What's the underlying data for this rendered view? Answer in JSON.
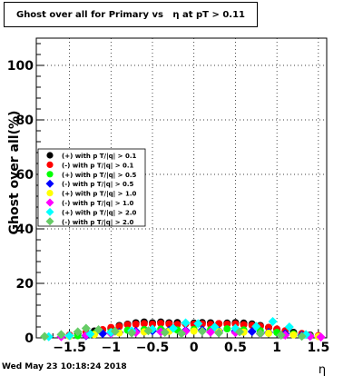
{
  "title": "Ghost over all for Primary vs   η at pT > 0.11",
  "footer": "Wed May 23 10:18:24 2018",
  "chart_data": {
    "type": "scatter",
    "title": "Ghost over all for Primary vs   η at pT > 0.11",
    "xlabel": "η",
    "ylabel": "Ghost over all(%)",
    "xlim": [
      -1.9,
      1.6
    ],
    "ylim": [
      0,
      110
    ],
    "x_ticks": [
      -1.5,
      -1,
      -0.5,
      0,
      0.5,
      1,
      1.5
    ],
    "x_tick_labels": [
      "−1.5",
      "−1",
      "−0.5",
      "0",
      "0.5",
      "1",
      "1.5"
    ],
    "y_ticks": [
      0,
      20,
      40,
      60,
      80,
      100
    ],
    "y_tick_labels": [
      "0",
      "20",
      "40",
      "60",
      "80",
      "100"
    ],
    "grid": true,
    "legend_position": "left",
    "series": [
      {
        "name": "(+) with p T/|q| > 0.1",
        "color": "#000000",
        "marker": "circle",
        "x": [
          -1.4,
          -1.2,
          -1.0,
          -0.9,
          -0.8,
          -0.7,
          -0.6,
          -0.5,
          -0.4,
          -0.3,
          -0.2,
          -0.1,
          0.0,
          0.1,
          0.2,
          0.3,
          0.4,
          0.5,
          0.6,
          0.7,
          0.8,
          0.9,
          1.0,
          1.2,
          1.4
        ],
        "y": [
          1.5,
          2.5,
          3.5,
          4.5,
          5.0,
          5.5,
          5.8,
          5.5,
          5.8,
          5.5,
          5.6,
          5.2,
          5.4,
          5.6,
          5.5,
          5.2,
          5.4,
          5.6,
          5.4,
          5.1,
          4.5,
          3.8,
          3.0,
          2.0,
          1.0
        ]
      },
      {
        "name": "(-) with p T/|q| > 0.1",
        "color": "#ff0000",
        "marker": "circle",
        "x": [
          -1.5,
          -1.3,
          -1.1,
          -1.0,
          -0.9,
          -0.8,
          -0.7,
          -0.6,
          -0.5,
          -0.4,
          -0.3,
          -0.2,
          -0.1,
          0.0,
          0.1,
          0.2,
          0.3,
          0.4,
          0.5,
          0.6,
          0.7,
          0.8,
          0.9,
          1.0,
          1.1,
          1.3,
          1.5
        ],
        "y": [
          1.0,
          2.0,
          3.0,
          3.8,
          4.2,
          4.8,
          5.0,
          5.2,
          5.0,
          5.3,
          5.1,
          4.9,
          5.2,
          5.0,
          5.1,
          4.9,
          5.2,
          5.0,
          5.1,
          4.8,
          4.6,
          4.2,
          3.8,
          3.2,
          2.6,
          1.6,
          0.8
        ]
      },
      {
        "name": "(+) with p T/|q| > 0.5",
        "color": "#00ff00",
        "marker": "circle",
        "x": [
          -1.4,
          -1.2,
          -1.0,
          -0.8,
          -0.6,
          -0.4,
          -0.2,
          0.0,
          0.2,
          0.4,
          0.6,
          0.8,
          1.0,
          1.2,
          1.4
        ],
        "y": [
          0.8,
          1.5,
          2.2,
          2.8,
          3.0,
          3.2,
          2.9,
          3.1,
          3.0,
          3.3,
          2.9,
          2.6,
          2.0,
          1.4,
          0.7
        ]
      },
      {
        "name": "(-) with p T/|q| > 0.5",
        "color": "#0000ff",
        "marker": "diamond",
        "x": [
          -1.3,
          -1.1,
          -0.9,
          -0.7,
          -0.5,
          -0.3,
          -0.1,
          0.1,
          0.3,
          0.5,
          0.7,
          0.9,
          1.1,
          1.3
        ],
        "y": [
          0.8,
          1.6,
          2.0,
          2.4,
          2.6,
          2.8,
          2.7,
          2.9,
          2.6,
          2.5,
          2.3,
          2.0,
          1.5,
          0.9
        ]
      },
      {
        "name": "(+) with p T/|q| > 1.0",
        "color": "#ffff00",
        "marker": "circle",
        "x": [
          -1.5,
          -1.2,
          -0.9,
          -0.6,
          -0.3,
          0.0,
          0.3,
          0.6,
          0.9,
          1.2,
          1.5
        ],
        "y": [
          0.6,
          1.2,
          1.8,
          2.2,
          2.4,
          2.5,
          2.3,
          2.1,
          1.7,
          1.1,
          0.5
        ]
      },
      {
        "name": "(-) with p T/|q| > 1.0",
        "color": "#ff00ff",
        "marker": "diamond",
        "x": [
          -1.6,
          -1.3,
          -1.0,
          -0.7,
          -0.4,
          -0.1,
          0.2,
          0.5,
          0.8,
          1.1,
          1.4,
          1.53
        ],
        "y": [
          0.4,
          1.0,
          1.6,
          2.0,
          2.2,
          2.4,
          2.1,
          1.9,
          1.5,
          1.0,
          0.6,
          0.3
        ]
      },
      {
        "name": "(+) with p T/|q| > 2.0",
        "color": "#00ffff",
        "marker": "diamond",
        "x": [
          -1.75,
          -1.5,
          -1.25,
          -1.0,
          -0.75,
          -0.5,
          -0.25,
          -0.1,
          0.05,
          0.25,
          0.5,
          0.75,
          0.95,
          1.15,
          1.35
        ],
        "y": [
          0.4,
          0.8,
          1.4,
          2.0,
          2.6,
          3.2,
          3.5,
          5.5,
          5.2,
          4.0,
          3.5,
          4.2,
          6.0,
          4.0,
          1.2
        ]
      },
      {
        "name": "(-) with p T/|q| > 2.0",
        "color": "#66cc66",
        "marker": "diamond",
        "x": [
          -1.8,
          -1.6,
          -1.4,
          -1.3,
          -1.15,
          -0.95,
          -0.75,
          -0.55,
          -0.35,
          -0.15,
          0.1,
          0.3,
          0.55,
          0.8,
          1.05,
          1.3
        ],
        "y": [
          0.5,
          1.2,
          2.2,
          3.5,
          3.0,
          2.4,
          1.8,
          2.6,
          2.0,
          1.6,
          2.4,
          1.8,
          2.2,
          1.6,
          1.0,
          0.6
        ]
      }
    ]
  }
}
